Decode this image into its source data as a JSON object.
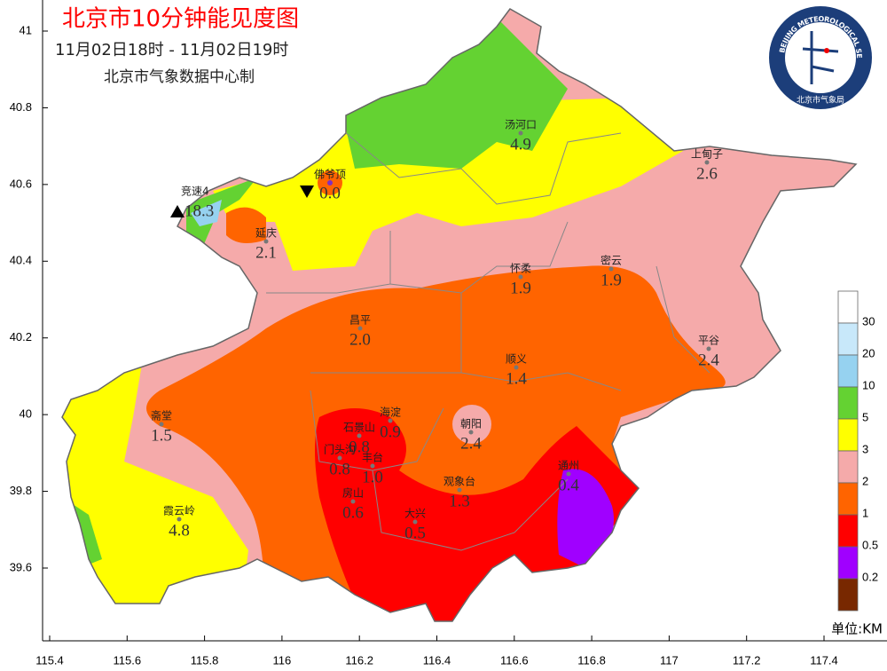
{
  "map": {
    "title": "北京市10分钟能见度图",
    "time_range": "11月02日18时 - 11月02日19时",
    "source": "北京市气象数据中心制",
    "logo": {
      "ring_text": "BEIJING METEOROLOGICAL SERVICE",
      "bottom_text": "北京市气象局"
    },
    "xticks": [
      115.4,
      115.6,
      115.8,
      116,
      116.2,
      116.4,
      116.6,
      116.8,
      117,
      117.2,
      117.4
    ],
    "yticks": [
      41,
      40.8,
      40.6,
      40.4,
      40.2,
      40,
      39.8,
      39.6
    ],
    "stations": [
      {
        "name": "汤河口",
        "value": "4.9"
      },
      {
        "name": "上甸子",
        "value": "2.6"
      },
      {
        "name": "佛爷顶",
        "value": "0.0"
      },
      {
        "name": "竞速4",
        "value": "18.3"
      },
      {
        "name": "延庆",
        "value": "2.1"
      },
      {
        "name": "怀柔",
        "value": "1.9"
      },
      {
        "name": "密云",
        "value": "1.9"
      },
      {
        "name": "昌平",
        "value": "2.0"
      },
      {
        "name": "平谷",
        "value": "2.4"
      },
      {
        "name": "顺义",
        "value": "1.4"
      },
      {
        "name": "海淀",
        "value": "0.9"
      },
      {
        "name": "朝阳",
        "value": "2.4"
      },
      {
        "name": "石景山",
        "value": "0.8"
      },
      {
        "name": "门头沟",
        "value": "0.8"
      },
      {
        "name": "丰台",
        "value": "1.0"
      },
      {
        "name": "通州",
        "value": "0.4"
      },
      {
        "name": "观象台",
        "value": "1.3"
      },
      {
        "name": "房山",
        "value": "0.6"
      },
      {
        "name": "大兴",
        "value": "0.5"
      },
      {
        "name": "斋堂",
        "value": "1.5"
      },
      {
        "name": "霞云岭",
        "value": "4.8"
      }
    ],
    "legend": {
      "colors": [
        "#ffffff",
        "#c8e8fa",
        "#96d2f0",
        "#64d232",
        "#ffff00",
        "#f5aaaa",
        "#ff6400",
        "#ff0000",
        "#a000ff",
        "#782800"
      ],
      "labels": [
        30,
        20,
        10,
        5,
        3,
        2,
        1,
        0.5,
        0.2
      ]
    },
    "unit": "单位:KM"
  }
}
